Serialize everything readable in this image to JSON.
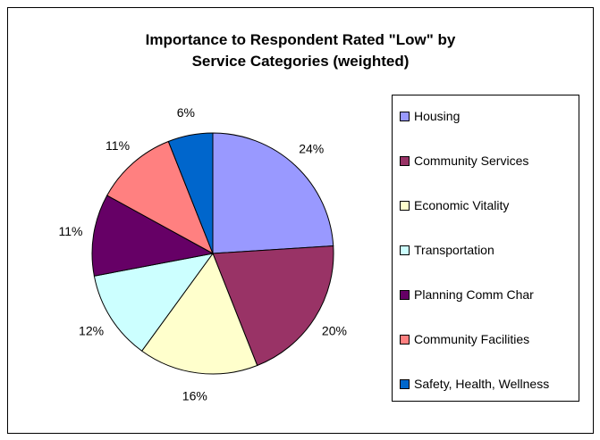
{
  "chart_data": {
    "type": "pie",
    "title_line1": "Importance to Respondent Rated \"Low\" by",
    "title_line2": "Service Categories (weighted)",
    "slices": [
      {
        "label": "Housing",
        "value": 24,
        "display": "24%",
        "color": "#9999FF"
      },
      {
        "label": "Community Services",
        "value": 20,
        "display": "20%",
        "color": "#993366"
      },
      {
        "label": "Economic Vitality",
        "value": 16,
        "display": "16%",
        "color": "#FFFFCC"
      },
      {
        "label": "Transportation",
        "value": 12,
        "display": "12%",
        "color": "#CCFFFF"
      },
      {
        "label": "Planning Comm Char",
        "value": 11,
        "display": "11%",
        "color": "#660066"
      },
      {
        "label": "Community Facilities",
        "value": 11,
        "display": "11%",
        "color": "#FF8080"
      },
      {
        "label": "Safety, Health, Wellness",
        "value": 6,
        "display": "6%",
        "color": "#0066CC"
      }
    ],
    "legend_position": "right"
  }
}
